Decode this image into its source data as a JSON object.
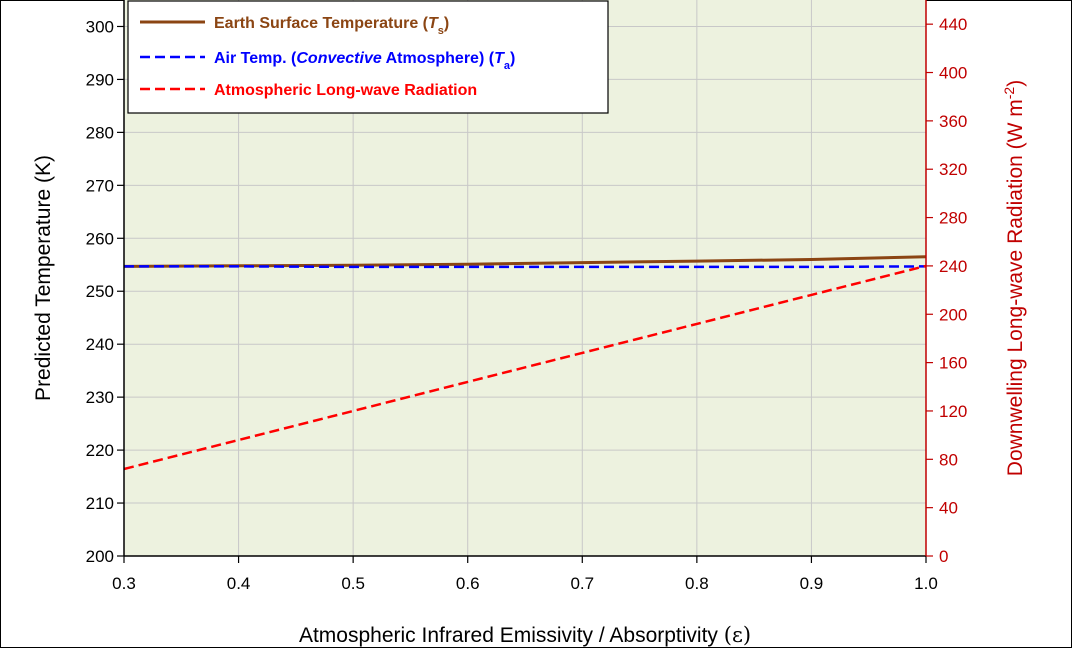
{
  "chart_data": {
    "type": "line",
    "xlabel_main": "Atmospheric Infrared Emissivity / Absorptivity",
    "xlabel_symbol": "(ε)",
    "ylabel_left": "Predicted Temperature (K)",
    "ylabel_right_main": "Downwelling Long-wave Radiation (W m",
    "ylabel_right_exp": "-2",
    "ylabel_right_close": ")",
    "xlim": [
      0.3,
      1.0
    ],
    "ylim_left": [
      200,
      305
    ],
    "ylim_right": [
      0,
      460
    ],
    "grid": true,
    "legend_position": "top-left",
    "x_ticks": [
      "0.3",
      "0.4",
      "0.5",
      "0.6",
      "0.7",
      "0.8",
      "0.9",
      "1.0"
    ],
    "y_left_ticks": [
      "200",
      "210",
      "220",
      "230",
      "240",
      "250",
      "260",
      "270",
      "280",
      "290",
      "300"
    ],
    "y_right_ticks": [
      "0",
      "40",
      "80",
      "120",
      "160",
      "200",
      "240",
      "280",
      "320",
      "360",
      "400",
      "440"
    ],
    "series": [
      {
        "name": "Earth Surface Temperature",
        "legend_main": "Earth Surface Temperature (",
        "legend_sym": "T",
        "legend_sub": "s",
        "legend_close": ")",
        "axis": "left",
        "color": "#8B4513",
        "dash": "solid",
        "x": [
          0.3,
          0.4,
          0.5,
          0.6,
          0.7,
          0.8,
          0.9,
          1.0
        ],
        "values": [
          254.7,
          254.8,
          254.9,
          255.1,
          255.4,
          255.7,
          256.0,
          256.5
        ]
      },
      {
        "name": "Air Temp. (Convective Atmosphere)",
        "legend_pre": "Air Temp. (",
        "legend_italic": "Convective",
        "legend_mid": " Atmosphere) (",
        "legend_sym": "T",
        "legend_sub": "a",
        "legend_close": ")",
        "axis": "left",
        "color": "#0000FF",
        "dash": "dashed",
        "x": [
          0.3,
          0.4,
          0.5,
          0.6,
          0.7,
          0.8,
          0.9,
          1.0
        ],
        "values": [
          254.7,
          254.7,
          254.6,
          254.6,
          254.6,
          254.6,
          254.6,
          254.7
        ]
      },
      {
        "name": "Atmospheric Long-wave Radiation",
        "legend_main": "Atmospheric Long-wave Radiation",
        "axis": "right",
        "color": "#FF0000",
        "dash": "dashed",
        "x": [
          0.3,
          0.4,
          0.5,
          0.6,
          0.7,
          0.8,
          0.9,
          1.0
        ],
        "values": [
          72,
          96,
          120,
          144,
          168,
          192,
          216,
          240
        ]
      }
    ]
  },
  "colors": {
    "plot_background": "#EDF2DF",
    "right_axis": "#C00000",
    "grid": "#c8c8c8"
  }
}
